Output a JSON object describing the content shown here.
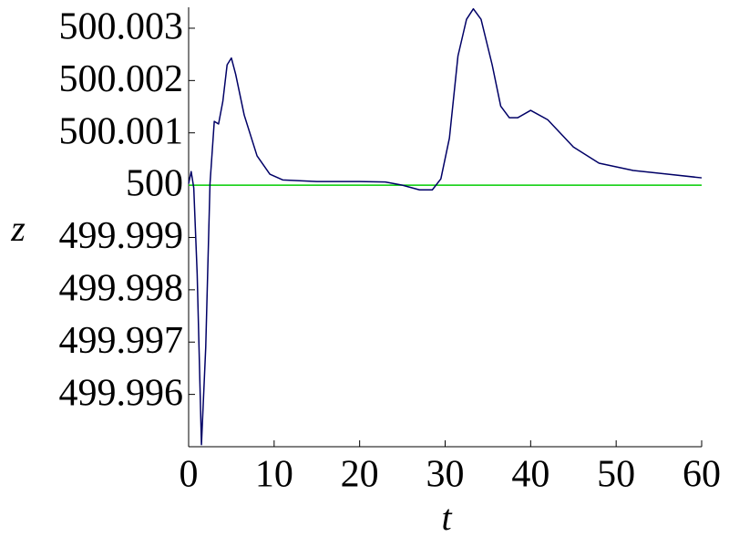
{
  "chart_data": {
    "type": "line",
    "x_label": "t",
    "y_label": "z",
    "xlim": [
      0,
      60
    ],
    "xticks": [
      0,
      10,
      20,
      30,
      40,
      50,
      60
    ],
    "ylim": [
      499.995,
      500.0034
    ],
    "yticks": [
      499.996,
      499.997,
      499.998,
      499.999,
      500,
      500.001,
      500.002,
      500.003
    ],
    "series": [
      {
        "color": "#000066",
        "x": [
          0,
          0.3,
          0.6,
          1.0,
          1.5,
          2.0,
          2.5,
          3.0,
          3.5,
          4.0,
          4.5,
          5.0,
          5.5,
          6.5,
          8,
          9.5,
          11,
          15,
          20,
          23,
          25,
          27,
          28.5,
          29.5,
          30.5,
          31.5,
          32.5,
          33.3,
          34.2,
          35.5,
          36.5,
          37.5,
          38.5,
          40,
          42,
          45,
          48,
          52,
          56,
          60
        ],
        "values": [
          500.00003,
          500.00026,
          499.99995,
          499.9983,
          499.99504,
          499.9969,
          500.00003,
          500.00122,
          500.00117,
          500.0016,
          500.0023,
          500.00243,
          500.00212,
          500.00134,
          500.00056,
          500.00021,
          500.0001,
          500.00007,
          500.00007,
          500.00006,
          500.0,
          499.99991,
          499.99991,
          500.00012,
          500.0009,
          500.00247,
          500.00317,
          500.00337,
          500.00317,
          500.0023,
          500.00151,
          500.00129,
          500.00129,
          500.00143,
          500.00125,
          500.00073,
          500.00042,
          500.00028,
          500.00021,
          500.00014
        ]
      },
      {
        "color": "#00cc00",
        "x": [
          0,
          60
        ],
        "values": [
          500,
          500
        ]
      }
    ]
  }
}
